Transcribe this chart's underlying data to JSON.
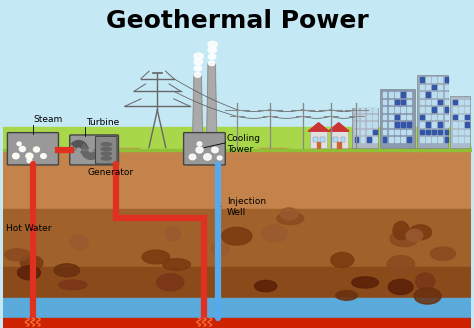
{
  "title": "Geothermal Power",
  "title_fontsize": 18,
  "title_font": "DejaVu Sans",
  "bg_sky": "#c5e8f5",
  "grass_color": "#a8d84a",
  "soil1_color": "#c4834a",
  "soil2_color": "#a0612a",
  "soil3_color": "#8a4a1a",
  "water_color": "#5aabdc",
  "magma_color": "#cc2200",
  "pipe_hot": "#e03020",
  "pipe_cold": "#55aaee",
  "pipe_lw": 4.5,
  "box_color": "#999999",
  "box_edge": "#444444",
  "labels": {
    "steam": "Steam",
    "turbine": "Turbine",
    "generator": "Generator",
    "hot_water": "Hot Water",
    "cooling_tower": "Cooling\nTower",
    "injection_well": "Injection\nWell"
  },
  "label_fs": 6.5
}
